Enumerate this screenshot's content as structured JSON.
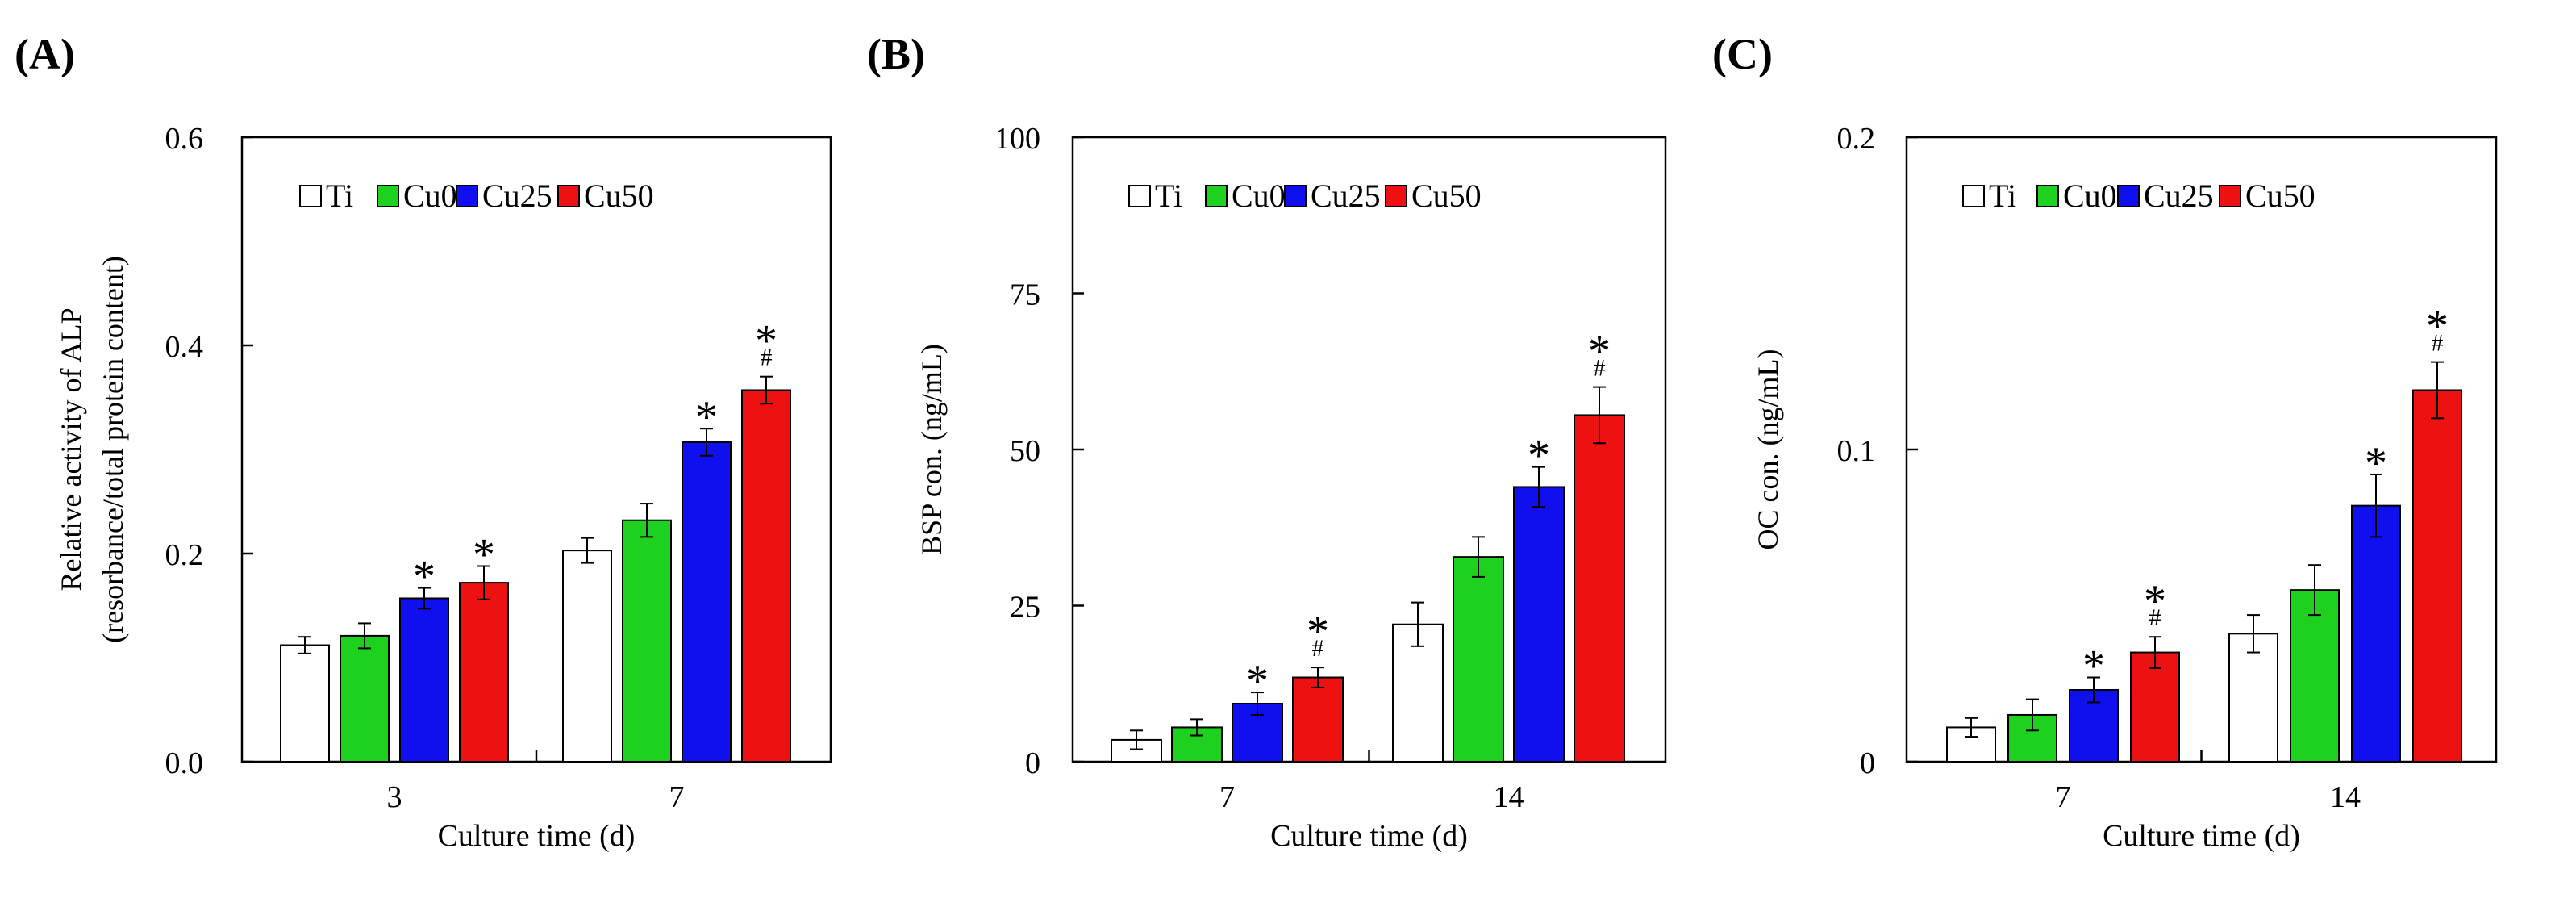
{
  "colors": {
    "Ti": "#ffffff",
    "Cu0": "#1fd11f",
    "Cu25": "#1010ee",
    "Cu50": "#ee1111",
    "stroke": "#000000"
  },
  "chart_data": [
    {
      "type": "bar",
      "panel_label": "(A)",
      "ylabel_lines": [
        "Relative activity of ALP",
        "(resorbance/total protein content)"
      ],
      "xlabel": "Culture time (d)",
      "categories": [
        "3",
        "7"
      ],
      "ylim": [
        0.0,
        0.6
      ],
      "yticks": [
        "0.0",
        "0.2",
        "0.4",
        "0.6"
      ],
      "ytick_values": [
        0.0,
        0.2,
        0.4,
        0.6
      ],
      "legend_position": "top",
      "series": [
        {
          "name": "Ti",
          "values": [
            0.112,
            0.203
          ],
          "errors": [
            0.008,
            0.012
          ],
          "annotations": [
            [],
            []
          ]
        },
        {
          "name": "Cu0",
          "values": [
            0.121,
            0.232
          ],
          "errors": [
            0.012,
            0.016
          ],
          "annotations": [
            [],
            []
          ]
        },
        {
          "name": "Cu25",
          "values": [
            0.157,
            0.307
          ],
          "errors": [
            0.01,
            0.013
          ],
          "annotations": [
            [
              "*"
            ],
            [
              "*"
            ]
          ]
        },
        {
          "name": "Cu50",
          "values": [
            0.172,
            0.357
          ],
          "errors": [
            0.016,
            0.013
          ],
          "annotations": [
            [
              "*"
            ],
            [
              "*",
              "#"
            ]
          ]
        }
      ]
    },
    {
      "type": "bar",
      "panel_label": "(B)",
      "ylabel_lines": [
        "BSP con. (ng/mL)"
      ],
      "xlabel": "Culture time (d)",
      "categories": [
        "7",
        "14"
      ],
      "ylim": [
        0,
        100
      ],
      "yticks": [
        "0",
        "25",
        "50",
        "75",
        "100"
      ],
      "ytick_values": [
        0,
        25,
        50,
        75,
        100
      ],
      "legend_position": "top",
      "series": [
        {
          "name": "Ti",
          "values": [
            3.5,
            22.0
          ],
          "errors": [
            1.5,
            3.5
          ],
          "annotations": [
            [],
            []
          ]
        },
        {
          "name": "Cu0",
          "values": [
            5.5,
            32.8
          ],
          "errors": [
            1.3,
            3.2
          ],
          "annotations": [
            [],
            []
          ]
        },
        {
          "name": "Cu25",
          "values": [
            9.3,
            44.0
          ],
          "errors": [
            1.8,
            3.2
          ],
          "annotations": [
            [
              "*"
            ],
            [
              "*"
            ]
          ]
        },
        {
          "name": "Cu50",
          "values": [
            13.5,
            55.5
          ],
          "errors": [
            1.6,
            4.5
          ],
          "annotations": [
            [
              "*",
              "#"
            ],
            [
              "*",
              "#"
            ]
          ]
        }
      ]
    },
    {
      "type": "bar",
      "panel_label": "(C)",
      "ylabel_lines": [
        "OC con. (ng/mL)"
      ],
      "xlabel": "Culture time (d)",
      "categories": [
        "7",
        "14"
      ],
      "ylim": [
        0,
        0.2
      ],
      "yticks": [
        "0",
        "0.1",
        "0.2"
      ],
      "ytick_values": [
        0,
        0.1,
        0.2
      ],
      "legend_position": "top",
      "series": [
        {
          "name": "Ti",
          "values": [
            0.011,
            0.041
          ],
          "errors": [
            0.003,
            0.006
          ],
          "annotations": [
            [],
            []
          ]
        },
        {
          "name": "Cu0",
          "values": [
            0.015,
            0.055
          ],
          "errors": [
            0.005,
            0.008
          ],
          "annotations": [
            [],
            []
          ]
        },
        {
          "name": "Cu25",
          "values": [
            0.023,
            0.082
          ],
          "errors": [
            0.004,
            0.01
          ],
          "annotations": [
            [
              "*"
            ],
            [
              "*"
            ]
          ]
        },
        {
          "name": "Cu50",
          "values": [
            0.035,
            0.119
          ],
          "errors": [
            0.005,
            0.009
          ],
          "annotations": [
            [
              "*",
              "#"
            ],
            [
              "*",
              "#"
            ]
          ]
        }
      ]
    }
  ]
}
